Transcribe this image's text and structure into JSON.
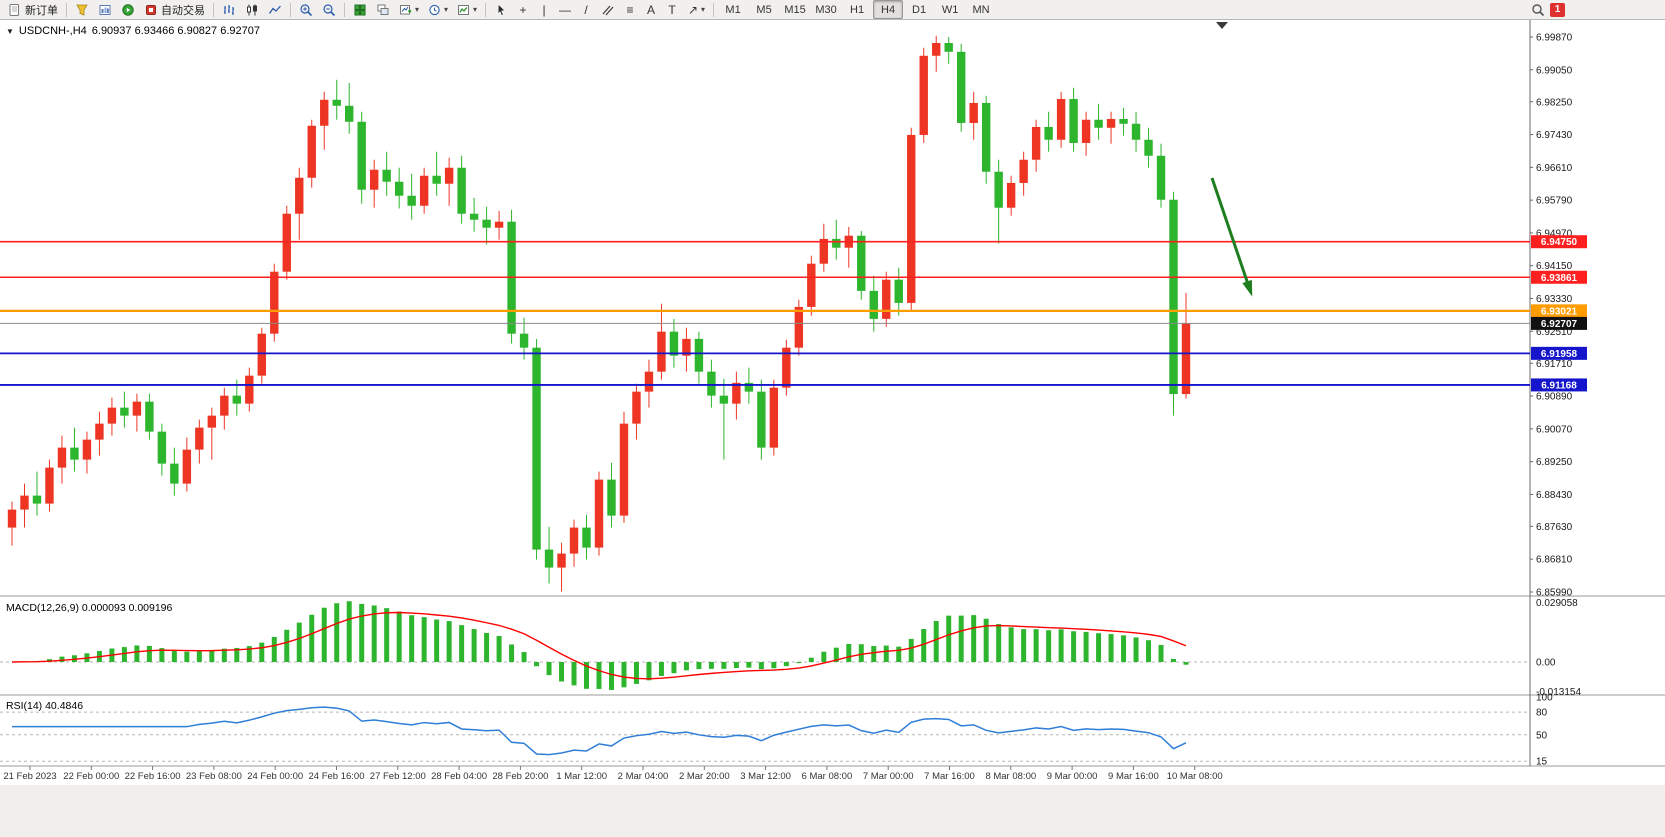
{
  "toolbar": {
    "new_order_label": "新订单",
    "autotrading_label": "自动交易",
    "timeframes": [
      "M1",
      "M5",
      "M15",
      "M30",
      "H1",
      "H4",
      "D1",
      "W1",
      "MN"
    ],
    "active_timeframe": "H4",
    "notification_count": "1",
    "icon_glyphs": {
      "crosshair": "+",
      "vline": "|",
      "hline": "—",
      "trend": "/",
      "fib": "≡",
      "text_tool": "A",
      "label_tool": "T",
      "arrow_tool": "↗",
      "dropdown": "▾"
    }
  },
  "chart": {
    "collapse_glyph": "▼",
    "symbol": "USDCNH-,H4",
    "ohlc": "6.90937 6.93466 6.90827 6.92707",
    "price_axis": [
      "6.99870",
      "6.99050",
      "6.98250",
      "6.97430",
      "6.96610",
      "6.95790",
      "6.94970",
      "6.94150",
      "6.93330",
      "6.92510",
      "6.91710",
      "6.90890",
      "6.90070",
      "6.89250",
      "6.88430",
      "6.87630",
      "6.86810",
      "6.85990"
    ],
    "time_axis": [
      "21 Feb 2023",
      "22 Feb 00:00",
      "22 Feb 16:00",
      "23 Feb 08:00",
      "24 Feb 00:00",
      "24 Feb 16:00",
      "27 Feb 12:00",
      "28 Feb 04:00",
      "28 Feb 20:00",
      "1 Mar 12:00",
      "2 Mar 04:00",
      "2 Mar 20:00",
      "3 Mar 12:00",
      "6 Mar 08:00",
      "7 Mar 00:00",
      "7 Mar 16:00",
      "8 Mar 08:00",
      "9 Mar 00:00",
      "9 Mar 16:00",
      "10 Mar 08:00"
    ],
    "hlines": [
      {
        "price": 6.9475,
        "label": "6.94750",
        "color": "#ff1f1f",
        "width": 1.6
      },
      {
        "price": 6.93861,
        "label": "6.93861",
        "color": "#ff1f1f",
        "width": 1.6
      },
      {
        "price": 6.93021,
        "label": "6.93021",
        "color": "#ff9d00",
        "width": 2.2
      },
      {
        "price": 6.92707,
        "label": "6.92707",
        "color": "#8a8a8a",
        "width": 1,
        "tag_color": "#111111"
      },
      {
        "price": 6.91958,
        "label": "6.91958",
        "color": "#1515cc",
        "width": 1.8
      },
      {
        "price": 6.91168,
        "label": "6.91168",
        "color": "#1515cc",
        "width": 1.8
      }
    ],
    "colors": {
      "up": "#ee3524",
      "down": "#2db52d",
      "macd_signal": "#ff0000",
      "macd_hist": "#2db52d",
      "rsi": "#2f7ed8",
      "annotation": "#1e7d1e"
    },
    "annotation_arrow": {
      "from": [
        1212,
        158
      ],
      "to": [
        1250,
        270
      ]
    },
    "shift_marker_x": 1222
  },
  "indicators": {
    "macd": {
      "label": "MACD(12,26,9) 0.000093 0.009196",
      "params": "12,26,9",
      "values": [
        "0.000093",
        "0.009196"
      ],
      "axis_labels": [
        "0.029058",
        "0.00",
        "-0.013154"
      ]
    },
    "rsi": {
      "label": "RSI(14) 40.4846",
      "value": "40.4846",
      "axis_labels": [
        "100",
        "80",
        "50",
        "15"
      ],
      "levels": [
        80,
        50,
        15
      ]
    }
  },
  "chart_data": {
    "type": "candlestick",
    "symbol": "USDCNH",
    "timeframe": "H4",
    "title": "USDCNH-,H4",
    "ohlc_display": [
      6.90937,
      6.93466,
      6.90827,
      6.92707
    ],
    "up_color_meaning": "red = bullish, green = bearish (Chinese convention)",
    "ylim": [
      6.8599,
      6.9987
    ],
    "candles": [
      [
        6.876,
        6.8825,
        6.8715,
        6.8805
      ],
      [
        6.8805,
        6.887,
        6.876,
        6.884
      ],
      [
        6.884,
        6.89,
        6.879,
        6.882
      ],
      [
        6.882,
        6.893,
        6.88,
        6.891
      ],
      [
        6.891,
        6.899,
        6.887,
        6.896
      ],
      [
        6.896,
        6.901,
        6.89,
        6.893
      ],
      [
        6.893,
        6.9,
        6.8895,
        6.898
      ],
      [
        6.898,
        6.905,
        6.894,
        6.902
      ],
      [
        6.902,
        6.9085,
        6.899,
        6.906
      ],
      [
        6.906,
        6.91,
        6.901,
        6.904
      ],
      [
        6.904,
        6.9095,
        6.9,
        6.9075
      ],
      [
        6.9075,
        6.9095,
        6.898,
        6.9
      ],
      [
        6.9,
        6.902,
        6.889,
        6.892
      ],
      [
        6.892,
        6.896,
        6.884,
        6.887
      ],
      [
        6.887,
        6.8985,
        6.885,
        6.8955
      ],
      [
        6.8955,
        6.903,
        6.892,
        6.901
      ],
      [
        6.901,
        6.906,
        6.893,
        6.904
      ],
      [
        6.904,
        6.911,
        6.9005,
        6.909
      ],
      [
        6.909,
        6.913,
        6.904,
        6.907
      ],
      [
        6.907,
        6.916,
        6.905,
        6.914
      ],
      [
        6.914,
        6.926,
        6.912,
        6.9245
      ],
      [
        6.9245,
        6.942,
        6.9225,
        6.94
      ],
      [
        6.94,
        6.9565,
        6.938,
        6.9545
      ],
      [
        6.9545,
        6.966,
        6.948,
        6.9635
      ],
      [
        6.9635,
        6.978,
        6.961,
        6.9765
      ],
      [
        6.9765,
        6.985,
        6.9705,
        6.983
      ],
      [
        6.983,
        6.988,
        6.978,
        6.9815
      ],
      [
        6.9815,
        6.9872,
        6.9745,
        6.9775
      ],
      [
        6.9775,
        6.98,
        6.957,
        6.9605
      ],
      [
        6.9605,
        6.968,
        6.956,
        6.9655
      ],
      [
        6.9655,
        6.97,
        6.959,
        6.9625
      ],
      [
        6.9625,
        6.966,
        6.9558,
        6.959
      ],
      [
        6.959,
        6.9645,
        6.953,
        6.9565
      ],
      [
        6.9565,
        6.966,
        6.9545,
        6.964
      ],
      [
        6.964,
        6.97,
        6.959,
        6.962
      ],
      [
        6.962,
        6.9685,
        6.9565,
        6.966
      ],
      [
        6.966,
        6.969,
        6.952,
        6.9545
      ],
      [
        6.9545,
        6.9585,
        6.95,
        6.953
      ],
      [
        6.953,
        6.9562,
        6.9468,
        6.951
      ],
      [
        6.951,
        6.9552,
        6.948,
        6.9525
      ],
      [
        6.9525,
        6.9555,
        6.922,
        6.9245
      ],
      [
        6.9245,
        6.9285,
        6.918,
        6.921
      ],
      [
        6.921,
        6.9232,
        6.868,
        6.8705
      ],
      [
        6.8705,
        6.8762,
        6.862,
        6.866
      ],
      [
        6.866,
        6.8722,
        6.86,
        6.8695
      ],
      [
        6.8695,
        6.878,
        6.8662,
        6.876
      ],
      [
        6.876,
        6.8792,
        6.868,
        6.871
      ],
      [
        6.871,
        6.89,
        6.869,
        6.888
      ],
      [
        6.888,
        6.8922,
        6.876,
        6.879
      ],
      [
        6.879,
        6.905,
        6.8772,
        6.902
      ],
      [
        6.902,
        6.912,
        6.898,
        6.91
      ],
      [
        6.91,
        6.918,
        6.906,
        6.915
      ],
      [
        6.915,
        6.932,
        6.913,
        6.925
      ],
      [
        6.925,
        6.9282,
        6.916,
        6.919
      ],
      [
        6.919,
        6.926,
        6.915,
        6.9232
      ],
      [
        6.9232,
        6.925,
        6.912,
        6.915
      ],
      [
        6.915,
        6.918,
        6.906,
        6.909
      ],
      [
        6.909,
        6.9132,
        6.893,
        6.907
      ],
      [
        6.907,
        6.915,
        6.903,
        6.9122
      ],
      [
        6.9122,
        6.916,
        6.907,
        6.91
      ],
      [
        6.91,
        6.913,
        6.893,
        6.896
      ],
      [
        6.896,
        6.913,
        6.894,
        6.911
      ],
      [
        6.911,
        6.923,
        6.909,
        6.921
      ],
      [
        6.921,
        6.933,
        6.919,
        6.9312
      ],
      [
        6.9312,
        6.944,
        6.929,
        6.942
      ],
      [
        6.942,
        6.952,
        6.94,
        6.9482
      ],
      [
        6.9482,
        6.953,
        6.943,
        6.946
      ],
      [
        6.946,
        6.9512,
        6.941,
        6.949
      ],
      [
        6.949,
        6.9502,
        6.933,
        6.9352
      ],
      [
        6.9352,
        6.939,
        6.925,
        6.9282
      ],
      [
        6.9282,
        6.94,
        6.9262,
        6.938
      ],
      [
        6.938,
        6.941,
        6.929,
        6.9322
      ],
      [
        6.9322,
        6.976,
        6.93,
        6.9742
      ],
      [
        6.9742,
        6.996,
        6.9722,
        6.994
      ],
      [
        6.994,
        6.999,
        6.99,
        6.9972
      ],
      [
        6.9972,
        6.9987,
        6.992,
        6.995
      ],
      [
        6.995,
        6.997,
        6.975,
        6.9772
      ],
      [
        6.9772,
        6.985,
        6.973,
        6.9822
      ],
      [
        6.9822,
        6.984,
        6.962,
        6.965
      ],
      [
        6.965,
        6.968,
        6.947,
        6.956
      ],
      [
        6.956,
        6.964,
        6.954,
        6.9622
      ],
      [
        6.9622,
        6.97,
        6.959,
        6.968
      ],
      [
        6.968,
        6.978,
        6.965,
        6.9762
      ],
      [
        6.9762,
        6.98,
        6.97,
        6.973
      ],
      [
        6.973,
        6.985,
        6.971,
        6.9832
      ],
      [
        6.9832,
        6.986,
        6.97,
        6.9722
      ],
      [
        6.9722,
        6.98,
        6.969,
        6.978
      ],
      [
        6.978,
        6.982,
        6.973,
        6.976
      ],
      [
        6.976,
        6.98,
        6.972,
        6.9782
      ],
      [
        6.9782,
        6.981,
        6.974,
        6.977
      ],
      [
        6.977,
        6.98,
        6.97,
        6.973
      ],
      [
        6.973,
        6.976,
        6.966,
        6.969
      ],
      [
        6.969,
        6.972,
        6.956,
        6.958
      ],
      [
        6.958,
        6.96,
        6.904,
        6.9094
      ],
      [
        6.9094,
        6.93466,
        6.90827,
        6.92707
      ]
    ]
  }
}
